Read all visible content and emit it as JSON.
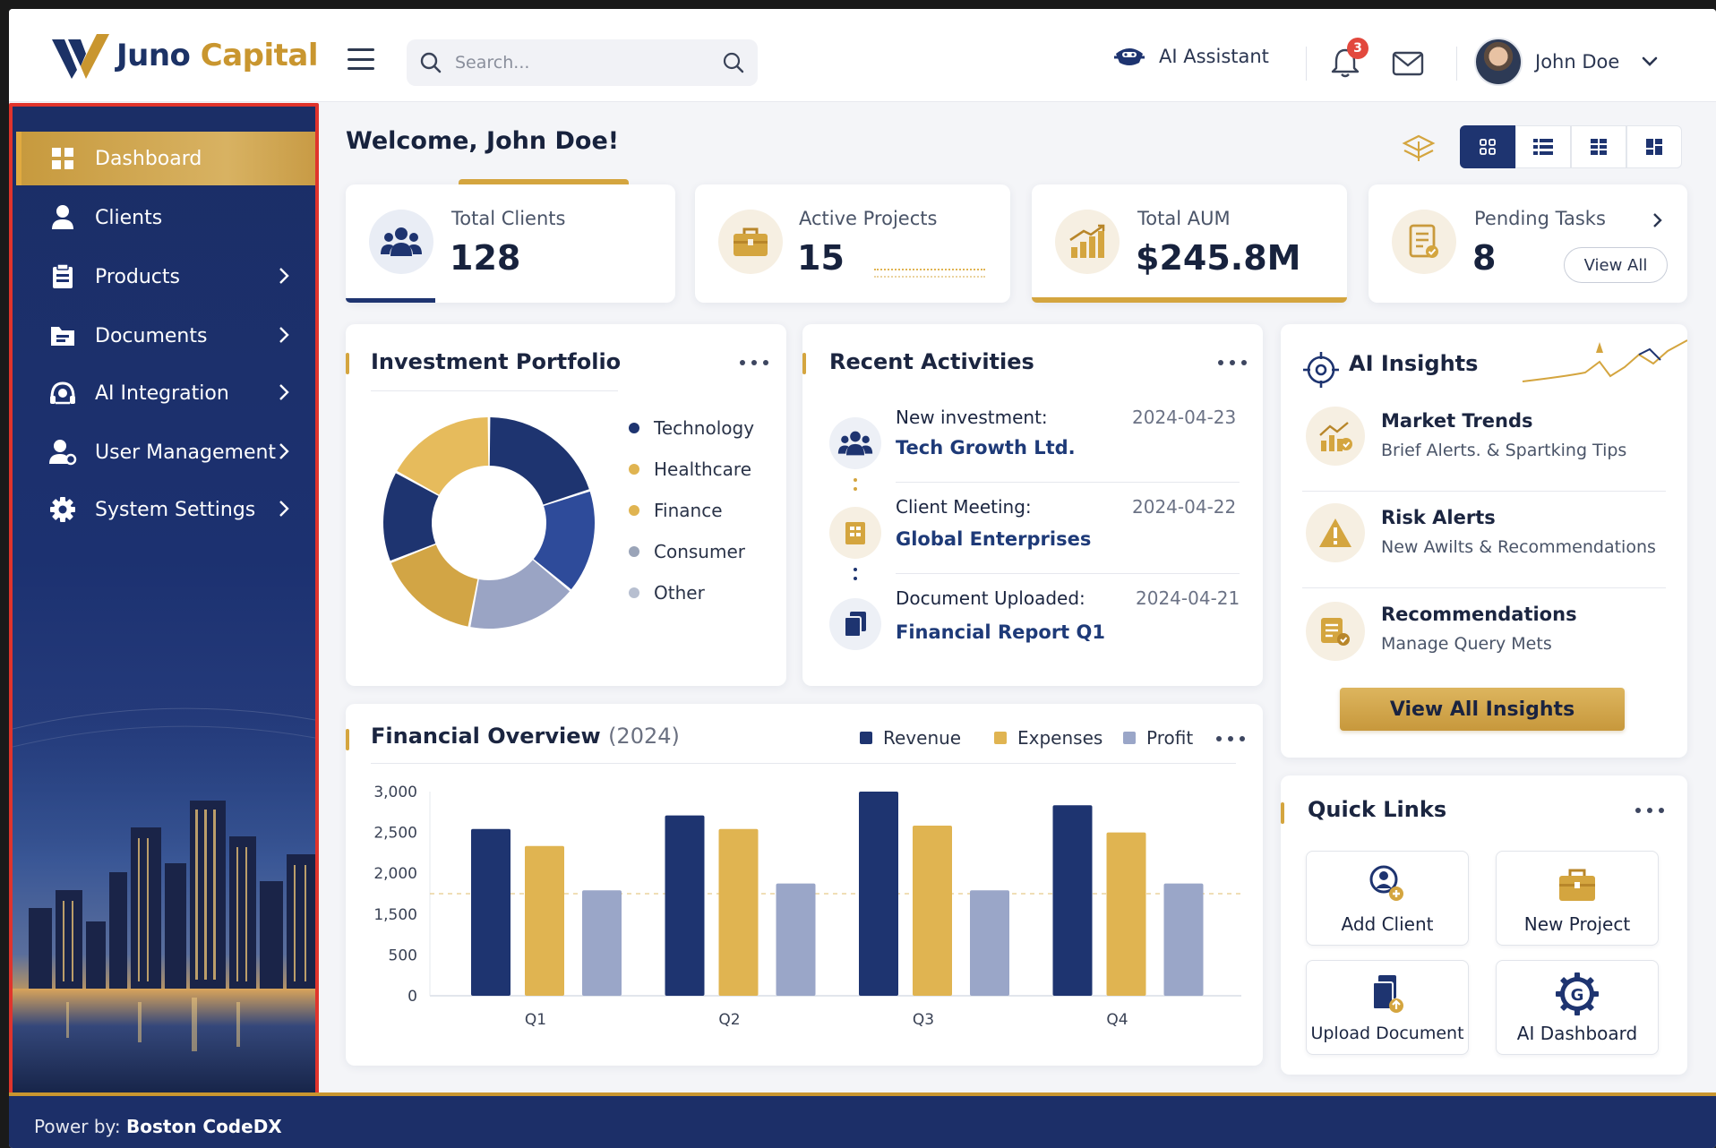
{
  "brand": {
    "name_part1": "Juno",
    "name_part2": " Capital",
    "navy": "#1c3266",
    "gold": "#c9962f"
  },
  "header": {
    "search_placeholder": "Search...",
    "ai_assistant_label": "AI Assistant",
    "notification_count": "3",
    "user_name": "John Doe"
  },
  "sidebar": {
    "items": [
      {
        "label": "Dashboard",
        "icon": "grid-icon",
        "active": true,
        "has_children": false
      },
      {
        "label": "Clients",
        "icon": "user-icon",
        "has_children": false
      },
      {
        "label": "Products",
        "icon": "product-icon",
        "has_children": true
      },
      {
        "label": "Documents",
        "icon": "folder-icon",
        "has_children": true
      },
      {
        "label": "AI Integration",
        "icon": "ai-brain-icon",
        "has_children": true
      },
      {
        "label": "User Management",
        "icon": "user-settings-icon",
        "has_children": true
      },
      {
        "label": "System Settings",
        "icon": "gear-icon",
        "has_children": true
      }
    ],
    "footer_prefix": "Power by: ",
    "footer_brand": "Boston CodeDX"
  },
  "main": {
    "welcome": "Welcome, John Doe!",
    "view_modes": [
      "grid-4-icon",
      "list-icon",
      "grid-6-icon",
      "dashboard-icon"
    ],
    "stats": [
      {
        "label": "Total Clients",
        "value": "128",
        "icon": "users-icon"
      },
      {
        "label": "Active Projects",
        "value": "15",
        "icon": "briefcase-icon"
      },
      {
        "label": "Total AUM",
        "value": "$245.8M",
        "icon": "bar-growth-icon"
      },
      {
        "label": "Pending Tasks",
        "value": "8",
        "icon": "task-list-icon",
        "action_label": "View All"
      }
    ],
    "portfolio": {
      "title": "Investment Portfolio",
      "legend": [
        {
          "label": "Technology",
          "color": "#1e3470"
        },
        {
          "label": "Healthcare",
          "color": "#e0b451"
        },
        {
          "label": "Finance",
          "color": "#e0b451"
        },
        {
          "label": "Consumer",
          "color": "#9aa4b8"
        },
        {
          "label": "Other",
          "color": "#b7bfd0"
        }
      ]
    },
    "activities": {
      "title": "Recent Activities",
      "items": [
        {
          "title": "New investment:",
          "link": "Tech Growth Ltd.",
          "date": "2024-04-23",
          "icon": "users-icon"
        },
        {
          "title": "Client Meeting:",
          "link": "Global Enterprises",
          "date": "2024-04-22",
          "icon": "building-icon"
        },
        {
          "title": "Document Uploaded:",
          "link": "Financial Report Q1",
          "date": "2024-04-21",
          "icon": "document-icon"
        }
      ]
    },
    "insights": {
      "title": "AI Insights",
      "items": [
        {
          "title": "Market Trends",
          "subtitle": "Brief Alerts. & Spartking Tips",
          "icon": "chart-trend-icon"
        },
        {
          "title": "Risk Alerts",
          "subtitle": "New Awilts & Recommendations",
          "icon": "warning-icon"
        },
        {
          "title": "Recommendations",
          "subtitle": "Manage Query Mets",
          "icon": "list-check-icon"
        }
      ],
      "button_label": "View All Insights"
    },
    "financial": {
      "title": "Financial Overview",
      "title_suffix": "(2024)",
      "legend": [
        "Revenue",
        "Expenses",
        "Profit"
      ]
    },
    "quick_links": {
      "title": "Quick Links",
      "items": [
        {
          "label": "Add Client",
          "icon": "add-client-icon"
        },
        {
          "label": "New Project",
          "icon": "briefcase-icon"
        },
        {
          "label": "Upload Document",
          "icon": "upload-document-icon"
        },
        {
          "label": "AI Dashboard",
          "icon": "ai-dashboard-icon"
        }
      ]
    }
  },
  "chart_data": [
    {
      "type": "pie",
      "title": "Investment Portfolio",
      "slices": [
        {
          "label": "Technology",
          "value": 20
        },
        {
          "label": "Technology",
          "value": 16
        },
        {
          "label": "Consumer",
          "value": 17
        },
        {
          "label": "Finance",
          "value": 16
        },
        {
          "label": "Technology",
          "value": 14
        },
        {
          "label": "Healthcare",
          "value": 17
        }
      ],
      "colors": [
        "#1e3470",
        "#2e4b9a",
        "#9aa4c4",
        "#d2a545",
        "#1e3470",
        "#e6bb5c"
      ]
    },
    {
      "type": "bar",
      "title": "Financial Overview (2024)",
      "categories": [
        "Q1",
        "Q2",
        "Q3",
        "Q4"
      ],
      "series": [
        {
          "name": "Revenue",
          "values": [
            2450,
            2650,
            3000,
            2800
          ],
          "color": "#1e3470"
        },
        {
          "name": "Expenses",
          "values": [
            2200,
            2450,
            2500,
            2400
          ],
          "color": "#e0b451"
        },
        {
          "name": "Profit",
          "values": [
            1550,
            1650,
            1550,
            1650
          ],
          "color": "#9aa6c8"
        }
      ],
      "yticks": [
        "0",
        "500",
        "1,500",
        "2,000",
        "2,500",
        "3,000"
      ],
      "ylim": [
        0,
        3000
      ],
      "grid": false
    }
  ]
}
